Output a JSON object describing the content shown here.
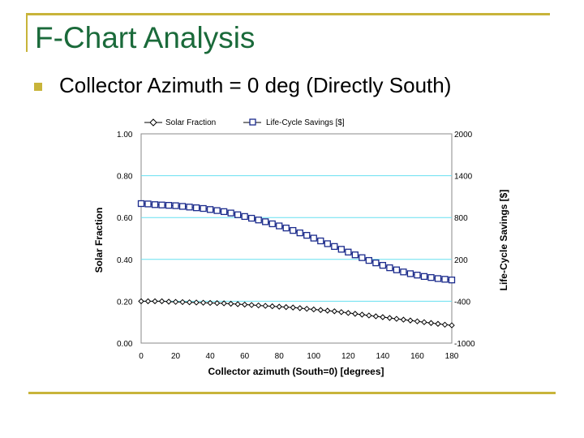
{
  "slide": {
    "title": "F-Chart Analysis",
    "bullet": "Collector Azimuth = 0 deg (Directly South)",
    "accent_color": "#c8b43a",
    "title_color": "#1a6a3a"
  },
  "chart_data": {
    "type": "line",
    "xlabel": "Collector azimuth (South=0) [degrees]",
    "ylabel": "Solar Fraction",
    "y2label": "Life-Cycle Savings [$]",
    "xlim": [
      0,
      180
    ],
    "ylim": [
      0,
      1.0
    ],
    "y2lim": [
      -1000,
      2000
    ],
    "x_ticks": [
      "0",
      "20",
      "40",
      "60",
      "80",
      "100",
      "120",
      "140",
      "160",
      "180"
    ],
    "y_ticks": [
      "0.00",
      "0.20",
      "0.40",
      "0.60",
      "0.80",
      "1.00"
    ],
    "y2_ticks": [
      "-1000",
      "-400",
      "200",
      "800",
      "1400",
      "2000"
    ],
    "grid": true,
    "grid_color": "#66e0f0",
    "legend_position": "top",
    "x": [
      0,
      4,
      8,
      12,
      16,
      20,
      24,
      28,
      32,
      36,
      40,
      44,
      48,
      52,
      56,
      60,
      64,
      68,
      72,
      76,
      80,
      84,
      88,
      92,
      96,
      100,
      104,
      108,
      112,
      116,
      120,
      124,
      128,
      132,
      136,
      140,
      144,
      148,
      152,
      156,
      160,
      164,
      168,
      172,
      176,
      180
    ],
    "series": [
      {
        "name": "Solar Fraction",
        "axis": "left",
        "marker": "diamond",
        "values": [
          0.2,
          0.2,
          0.2,
          0.2,
          0.198,
          0.197,
          0.196,
          0.195,
          0.194,
          0.193,
          0.192,
          0.191,
          0.19,
          0.188,
          0.186,
          0.184,
          0.182,
          0.18,
          0.178,
          0.176,
          0.174,
          0.172,
          0.17,
          0.167,
          0.164,
          0.161,
          0.158,
          0.155,
          0.152,
          0.148,
          0.144,
          0.14,
          0.136,
          0.132,
          0.128,
          0.124,
          0.12,
          0.116,
          0.112,
          0.108,
          0.104,
          0.1,
          0.096,
          0.092,
          0.088,
          0.085
        ]
      },
      {
        "name": "Life-Cycle Savings [$]",
        "axis": "right",
        "marker": "square",
        "values": [
          1000,
          995,
          985,
          980,
          975,
          970,
          960,
          950,
          940,
          930,
          915,
          900,
          885,
          865,
          840,
          815,
          790,
          765,
          740,
          710,
          680,
          650,
          615,
          580,
          545,
          505,
          465,
          425,
          385,
          345,
          305,
          265,
          225,
          185,
          150,
          115,
          80,
          50,
          20,
          -5,
          -25,
          -45,
          -60,
          -75,
          -85,
          -95
        ]
      }
    ]
  }
}
